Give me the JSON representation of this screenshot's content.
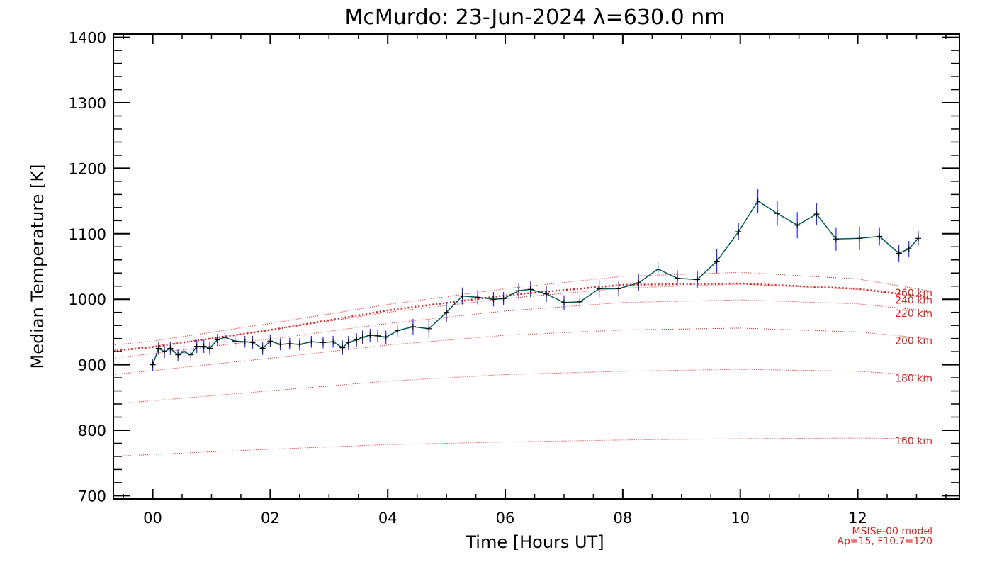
{
  "chart_data": {
    "type": "line",
    "title": "McMurdo: 23-Jun-2024 λ=630.0 nm",
    "xlabel": "Time [Hours UT]",
    "ylabel": "Median Temperature [K]",
    "xlim": [
      -0.67,
      13.73
    ],
    "ylim": [
      695,
      1405
    ],
    "x_ticks": [
      0,
      2,
      4,
      6,
      8,
      10,
      12
    ],
    "x_tick_labels": [
      "00",
      "02",
      "04",
      "06",
      "08",
      "10",
      "12"
    ],
    "y_ticks": [
      700,
      800,
      900,
      1000,
      1100,
      1200,
      1300,
      1400
    ],
    "y_tick_labels": [
      "700",
      "800",
      "900",
      "1000",
      "1100",
      "1200",
      "1300",
      "1400"
    ],
    "grid": false,
    "colors": {
      "measurement_line": "#005a5a",
      "error_bar": "#2a2aff",
      "marker": "#000000",
      "model": "#e02020"
    },
    "series": [
      {
        "x": [
          0.0,
          0.1,
          0.2,
          0.3,
          0.43,
          0.53,
          0.65,
          0.75,
          0.87,
          0.97,
          1.1,
          1.23,
          1.4,
          1.57,
          1.7,
          1.87,
          2.0,
          2.17,
          2.33,
          2.5,
          2.7,
          2.9,
          3.07,
          3.23,
          3.33,
          3.47,
          3.57,
          3.7,
          3.83,
          3.97,
          4.17,
          4.43,
          4.7,
          5.0,
          5.27,
          5.53,
          5.8,
          5.97,
          6.23,
          6.43,
          6.7,
          7.0,
          7.27,
          7.6,
          7.93,
          8.27,
          8.6,
          8.93,
          9.27,
          9.6,
          9.97,
          10.3,
          10.63,
          10.97,
          11.3,
          11.63,
          12.03,
          12.37,
          12.7,
          12.87,
          13.03
        ],
        "values": [
          900,
          925,
          920,
          925,
          915,
          920,
          915,
          928,
          928,
          925,
          938,
          942,
          936,
          935,
          934,
          925,
          936,
          931,
          932,
          931,
          935,
          934,
          935,
          926,
          934,
          938,
          942,
          945,
          944,
          942,
          952,
          958,
          955,
          980,
          1005,
          1003,
          1000,
          1001,
          1013,
          1015,
          1008,
          995,
          996,
          1016,
          1016,
          1025,
          1046,
          1032,
          1030,
          1058,
          1103,
          1150,
          1131,
          1113,
          1130,
          1092,
          1093,
          1096,
          1070,
          1077,
          1093
        ],
        "errors": [
          9,
          10,
          10,
          10,
          9,
          10,
          10,
          10,
          10,
          10,
          9,
          9,
          9,
          9,
          10,
          10,
          9,
          9,
          9,
          9,
          9,
          9,
          9,
          11,
          10,
          10,
          10,
          10,
          10,
          10,
          10,
          12,
          14,
          15,
          13,
          11,
          11,
          10,
          11,
          12,
          12,
          11,
          10,
          13,
          12,
          13,
          12,
          12,
          13,
          18,
          13,
          18,
          19,
          20,
          17,
          18,
          18,
          14,
          13,
          12,
          11
        ]
      }
    ],
    "model": {
      "name": "MSISe-00 model",
      "params": "Ap=15, F10.7=120",
      "curves": [
        {
          "label": "160 km",
          "x": [
            -0.67,
            0,
            2,
            4,
            6,
            8,
            10,
            12,
            13.2
          ],
          "values": [
            760,
            763,
            771,
            778,
            782,
            785,
            787,
            788,
            787
          ]
        },
        {
          "label": "180 km",
          "x": [
            -0.67,
            0,
            2,
            4,
            6,
            8,
            10,
            12,
            13.2
          ],
          "values": [
            840,
            845,
            860,
            875,
            885,
            890,
            893,
            890,
            883
          ]
        },
        {
          "label": "200 km",
          "x": [
            -0.67,
            0,
            2,
            4,
            6,
            8,
            10,
            12,
            13.2
          ],
          "values": [
            885,
            891,
            910,
            930,
            945,
            953,
            956,
            950,
            940
          ]
        },
        {
          "label": "220 km",
          "x": [
            -0.67,
            0,
            2,
            4,
            6,
            8,
            10,
            12,
            13.2
          ],
          "values": [
            910,
            917,
            939,
            963,
            982,
            995,
            999,
            993,
            982
          ]
        },
        {
          "label": "240 km",
          "x": [
            -0.67,
            0,
            2,
            4,
            6,
            8,
            10,
            12,
            13.2
          ],
          "values": [
            922,
            928,
            953,
            980,
            1001,
            1017,
            1023,
            1015,
            1002
          ]
        },
        {
          "label": "260 km",
          "x": [
            -0.67,
            0,
            2,
            4,
            6,
            8,
            10,
            12,
            13.2
          ],
          "values": [
            930,
            936,
            963,
            992,
            1016,
            1035,
            1041,
            1031,
            1013
          ]
        }
      ],
      "highlight": {
        "x": [
          -0.67,
          0,
          2,
          4,
          6,
          8,
          10,
          12,
          13.2
        ],
        "values": [
          921,
          927,
          953,
          983,
          1006,
          1022,
          1024,
          1016,
          1003
        ]
      }
    }
  }
}
